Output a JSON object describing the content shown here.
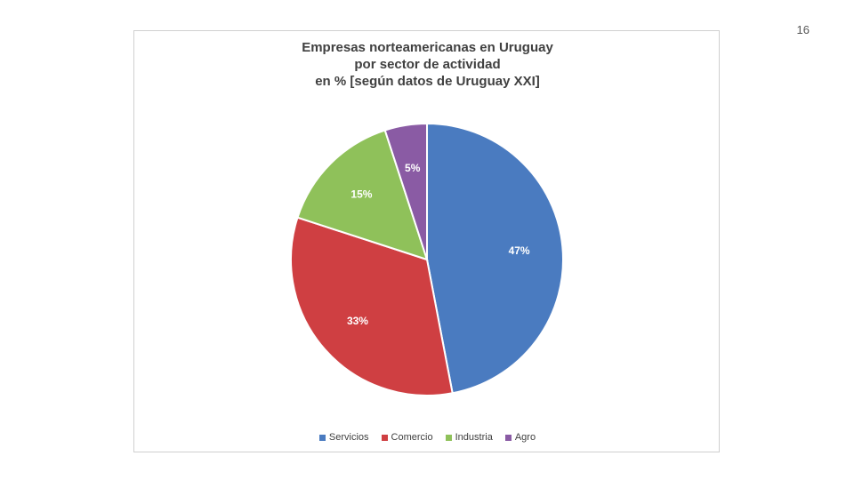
{
  "page": {
    "number": "16"
  },
  "chart_data": {
    "type": "pie",
    "title_lines": [
      "Empresas norteamericanas en Uruguay",
      "por sector de actividad",
      "en % [según datos de Uruguay XXI]"
    ],
    "categories": [
      "Servicios",
      "Comercio",
      "Industria",
      "Agro"
    ],
    "values": [
      47,
      33,
      15,
      5
    ],
    "data_labels": [
      "47%",
      "33%",
      "15%",
      "5%"
    ],
    "colors": [
      "#4a7bc0",
      "#cf3f42",
      "#8fc15a",
      "#8a5ba4"
    ],
    "start_angle_deg": 0,
    "direction": "clockwise",
    "legend_position": "bottom"
  }
}
